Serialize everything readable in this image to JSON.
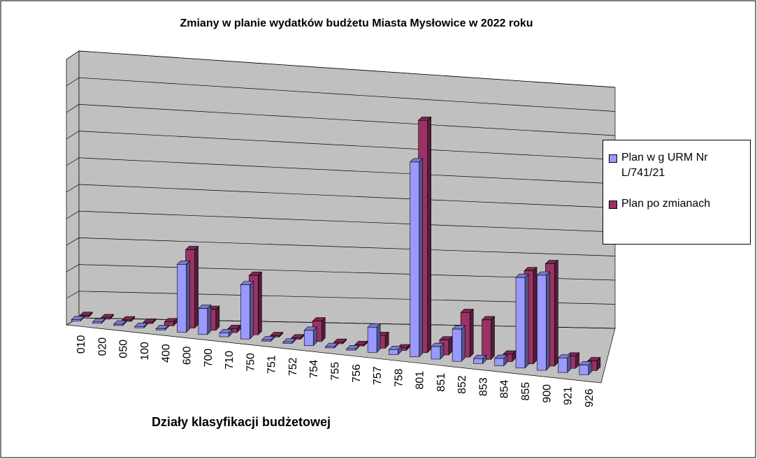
{
  "chart_data": {
    "type": "bar3d",
    "title": "Zmiany w planie wydatków budżetu Miasta Mysłowice w 2022 roku",
    "x_label": "Działy klasyfikacji budżetowej",
    "categories": [
      "010",
      "020",
      "050",
      "100",
      "400",
      "600",
      "700",
      "710",
      "750",
      "751",
      "752",
      "754",
      "755",
      "756",
      "757",
      "758",
      "801",
      "851",
      "852",
      "853",
      "854",
      "855",
      "900",
      "921",
      "926"
    ],
    "series": [
      {
        "name": "Plan w g URM Nr L/741/21",
        "color": "#9999ff",
        "values": [
          0.05,
          0.05,
          0.05,
          0.05,
          0.05,
          2.6,
          1.0,
          0.15,
          2.1,
          0.05,
          0.05,
          0.6,
          0.05,
          0.05,
          1.0,
          0.2,
          7.8,
          0.5,
          1.3,
          0.2,
          0.3,
          3.7,
          3.9,
          0.6,
          0.4
        ]
      },
      {
        "name": "Plan po zmianach",
        "color": "#993366",
        "values": [
          0.05,
          0.05,
          0.05,
          0.05,
          0.15,
          3.0,
          0.8,
          0.15,
          2.3,
          0.05,
          0.05,
          0.8,
          0.05,
          0.05,
          0.5,
          0.1,
          9.3,
          0.6,
          1.8,
          1.6,
          0.3,
          3.8,
          4.2,
          0.5,
          0.4
        ]
      }
    ],
    "ylim": [
      0,
      10
    ],
    "yticks": [
      0,
      1,
      2,
      3,
      4,
      5,
      6,
      7,
      8,
      9,
      10
    ],
    "grid": true,
    "legend": "right"
  }
}
